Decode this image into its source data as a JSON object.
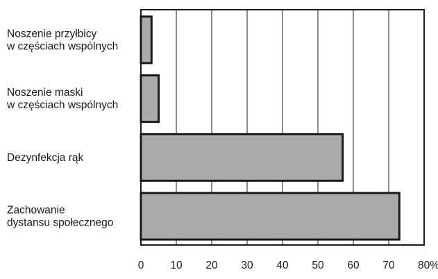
{
  "chart_data": {
    "type": "bar",
    "orientation": "horizontal",
    "categories": [
      [
        "Noszenie przyłbicy",
        "w częściach wspólnych"
      ],
      [
        "Noszenie maski",
        "w częściach wspólnych"
      ],
      [
        "Dezynfekcja rąk"
      ],
      [
        "Zachowanie",
        "dystansu społecznego"
      ]
    ],
    "values": [
      3,
      5,
      57,
      73
    ],
    "xlim": [
      0,
      80
    ],
    "xticks": [
      0,
      10,
      20,
      30,
      40,
      50,
      60,
      70,
      80
    ],
    "xtick_labels": [
      "0",
      "10",
      "20",
      "30",
      "40",
      "50",
      "60",
      "70",
      "80%"
    ],
    "grid": "vertical",
    "colors": {
      "bar_fill": "#aaaaaa",
      "bar_stroke": "#1a1a1a",
      "grid": "#1a1a1a"
    }
  }
}
